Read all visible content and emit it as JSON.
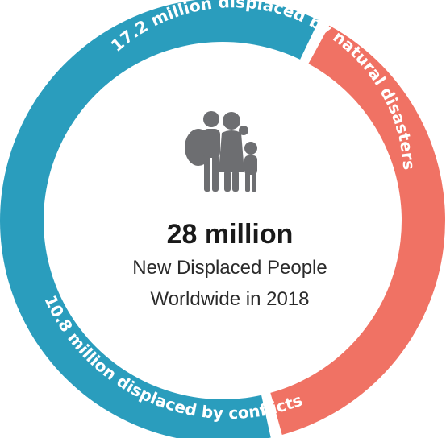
{
  "chart_data": {
    "type": "pie",
    "style": "donut",
    "center": {
      "total_label": "28 million",
      "line1": "New Displaced People",
      "line2": "Worldwide in 2018"
    },
    "slices": [
      {
        "name": "natural disasters",
        "value": 17.2,
        "label": "17.2 million displaced by natural disasters",
        "color": "#2a9dbd"
      },
      {
        "name": "conflicts",
        "value": 10.8,
        "label": "10.8 million displaced by conflicts",
        "color": "#f07264"
      }
    ],
    "center_icon": "family-icon",
    "icon_color": "#6d6e71"
  }
}
